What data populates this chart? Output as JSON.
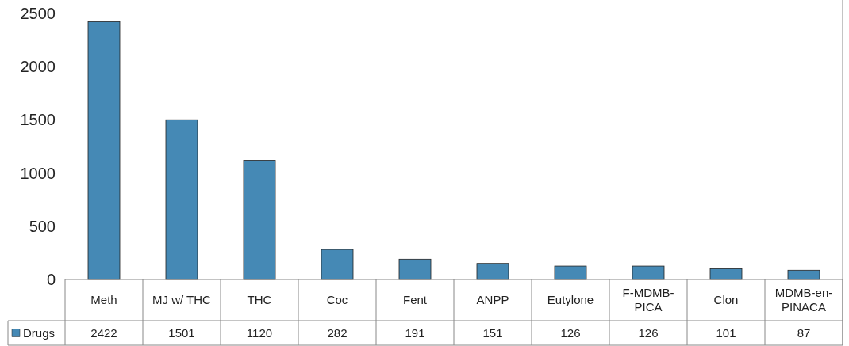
{
  "chart_data": {
    "type": "bar",
    "categories": [
      "Meth",
      "MJ w/ THC",
      "THC",
      "Coc",
      "Fent",
      "ANPP",
      "Eutylone",
      "F-MDMB-PICA",
      "Clon",
      "MDMB-en-PINACA"
    ],
    "series": [
      {
        "name": "Drugs",
        "color": "#4589b5",
        "values": [
          2422,
          1501,
          1120,
          282,
          191,
          151,
          126,
          126,
          101,
          87
        ]
      }
    ],
    "ylim": [
      0,
      2500
    ],
    "yticks": [
      0,
      500,
      1000,
      1500,
      2000,
      2500
    ],
    "grid": false,
    "legend": "bottom left",
    "data_labels": true
  }
}
